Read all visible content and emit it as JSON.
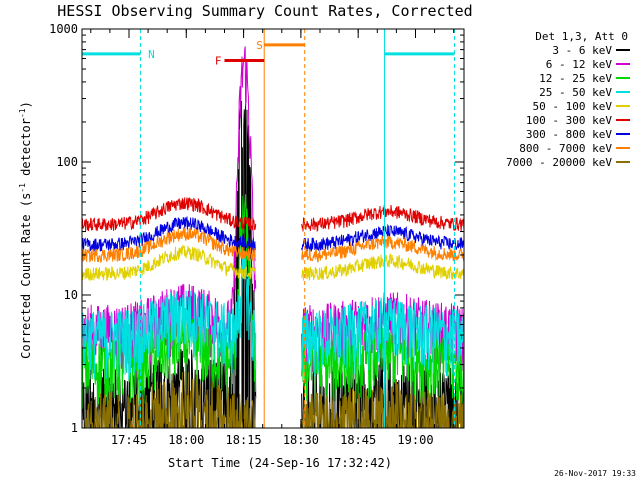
{
  "chart_data": {
    "type": "line",
    "title": "HESSI Observing Summary Count Rates, Corrected",
    "xlabel": "Start Time (24-Sep-16 17:32:42)",
    "ylabel_main": "Corrected Count Rate (s",
    "ylabel_sup1": "-1",
    "ylabel_mid": " detector",
    "ylabel_sup2": "-1",
    "ylabel_end": ")",
    "yscale": "log",
    "ylim": [
      1,
      1000
    ],
    "xlim_minutes": [
      0,
      100
    ],
    "x_tick_labels": [
      "17:45",
      "18:00",
      "18:15",
      "18:30",
      "18:45",
      "19:00"
    ],
    "x_tick_minutes": [
      12.3,
      27.3,
      42.3,
      57.3,
      72.3,
      87.3
    ],
    "y_tick_labels": [
      "1",
      "10",
      "100",
      "1000"
    ],
    "y_tick_values": [
      1,
      10,
      100,
      1000
    ],
    "legend_header": "Det 1,3, Att 0",
    "series": [
      {
        "name": "3 - 6 keV",
        "color": "#000000",
        "base": 1.8,
        "peak": 330
      },
      {
        "name": "6 - 12 keV",
        "color": "#d000d0",
        "base": 5.5,
        "peak": 560
      },
      {
        "name": "12 - 25 keV",
        "color": "#00d800",
        "base": 3.0,
        "peak": 40
      },
      {
        "name": "25 - 50 keV",
        "color": "#00e0e0",
        "base": 5.0,
        "peak": 14
      },
      {
        "name": "50 - 100 keV",
        "color": "#e0d000",
        "base": 14.5,
        "peak": 20
      },
      {
        "name": "100 - 300 keV",
        "color": "#e00000",
        "base": 34,
        "peak": 45
      },
      {
        "name": "300 - 800 keV",
        "color": "#0000e0",
        "base": 24,
        "peak": 30
      },
      {
        "name": "800 - 7000 keV",
        "color": "#ff8000",
        "base": 20,
        "peak": 25
      },
      {
        "name": "7000 - 20000 keV",
        "color": "#8b7000",
        "base": 1.2,
        "peak": 1.5
      }
    ],
    "annotations": {
      "N_label": "N",
      "S_label": "S",
      "F_label": "F"
    },
    "footer_timestamp": "26-Nov-2017 19:33"
  }
}
